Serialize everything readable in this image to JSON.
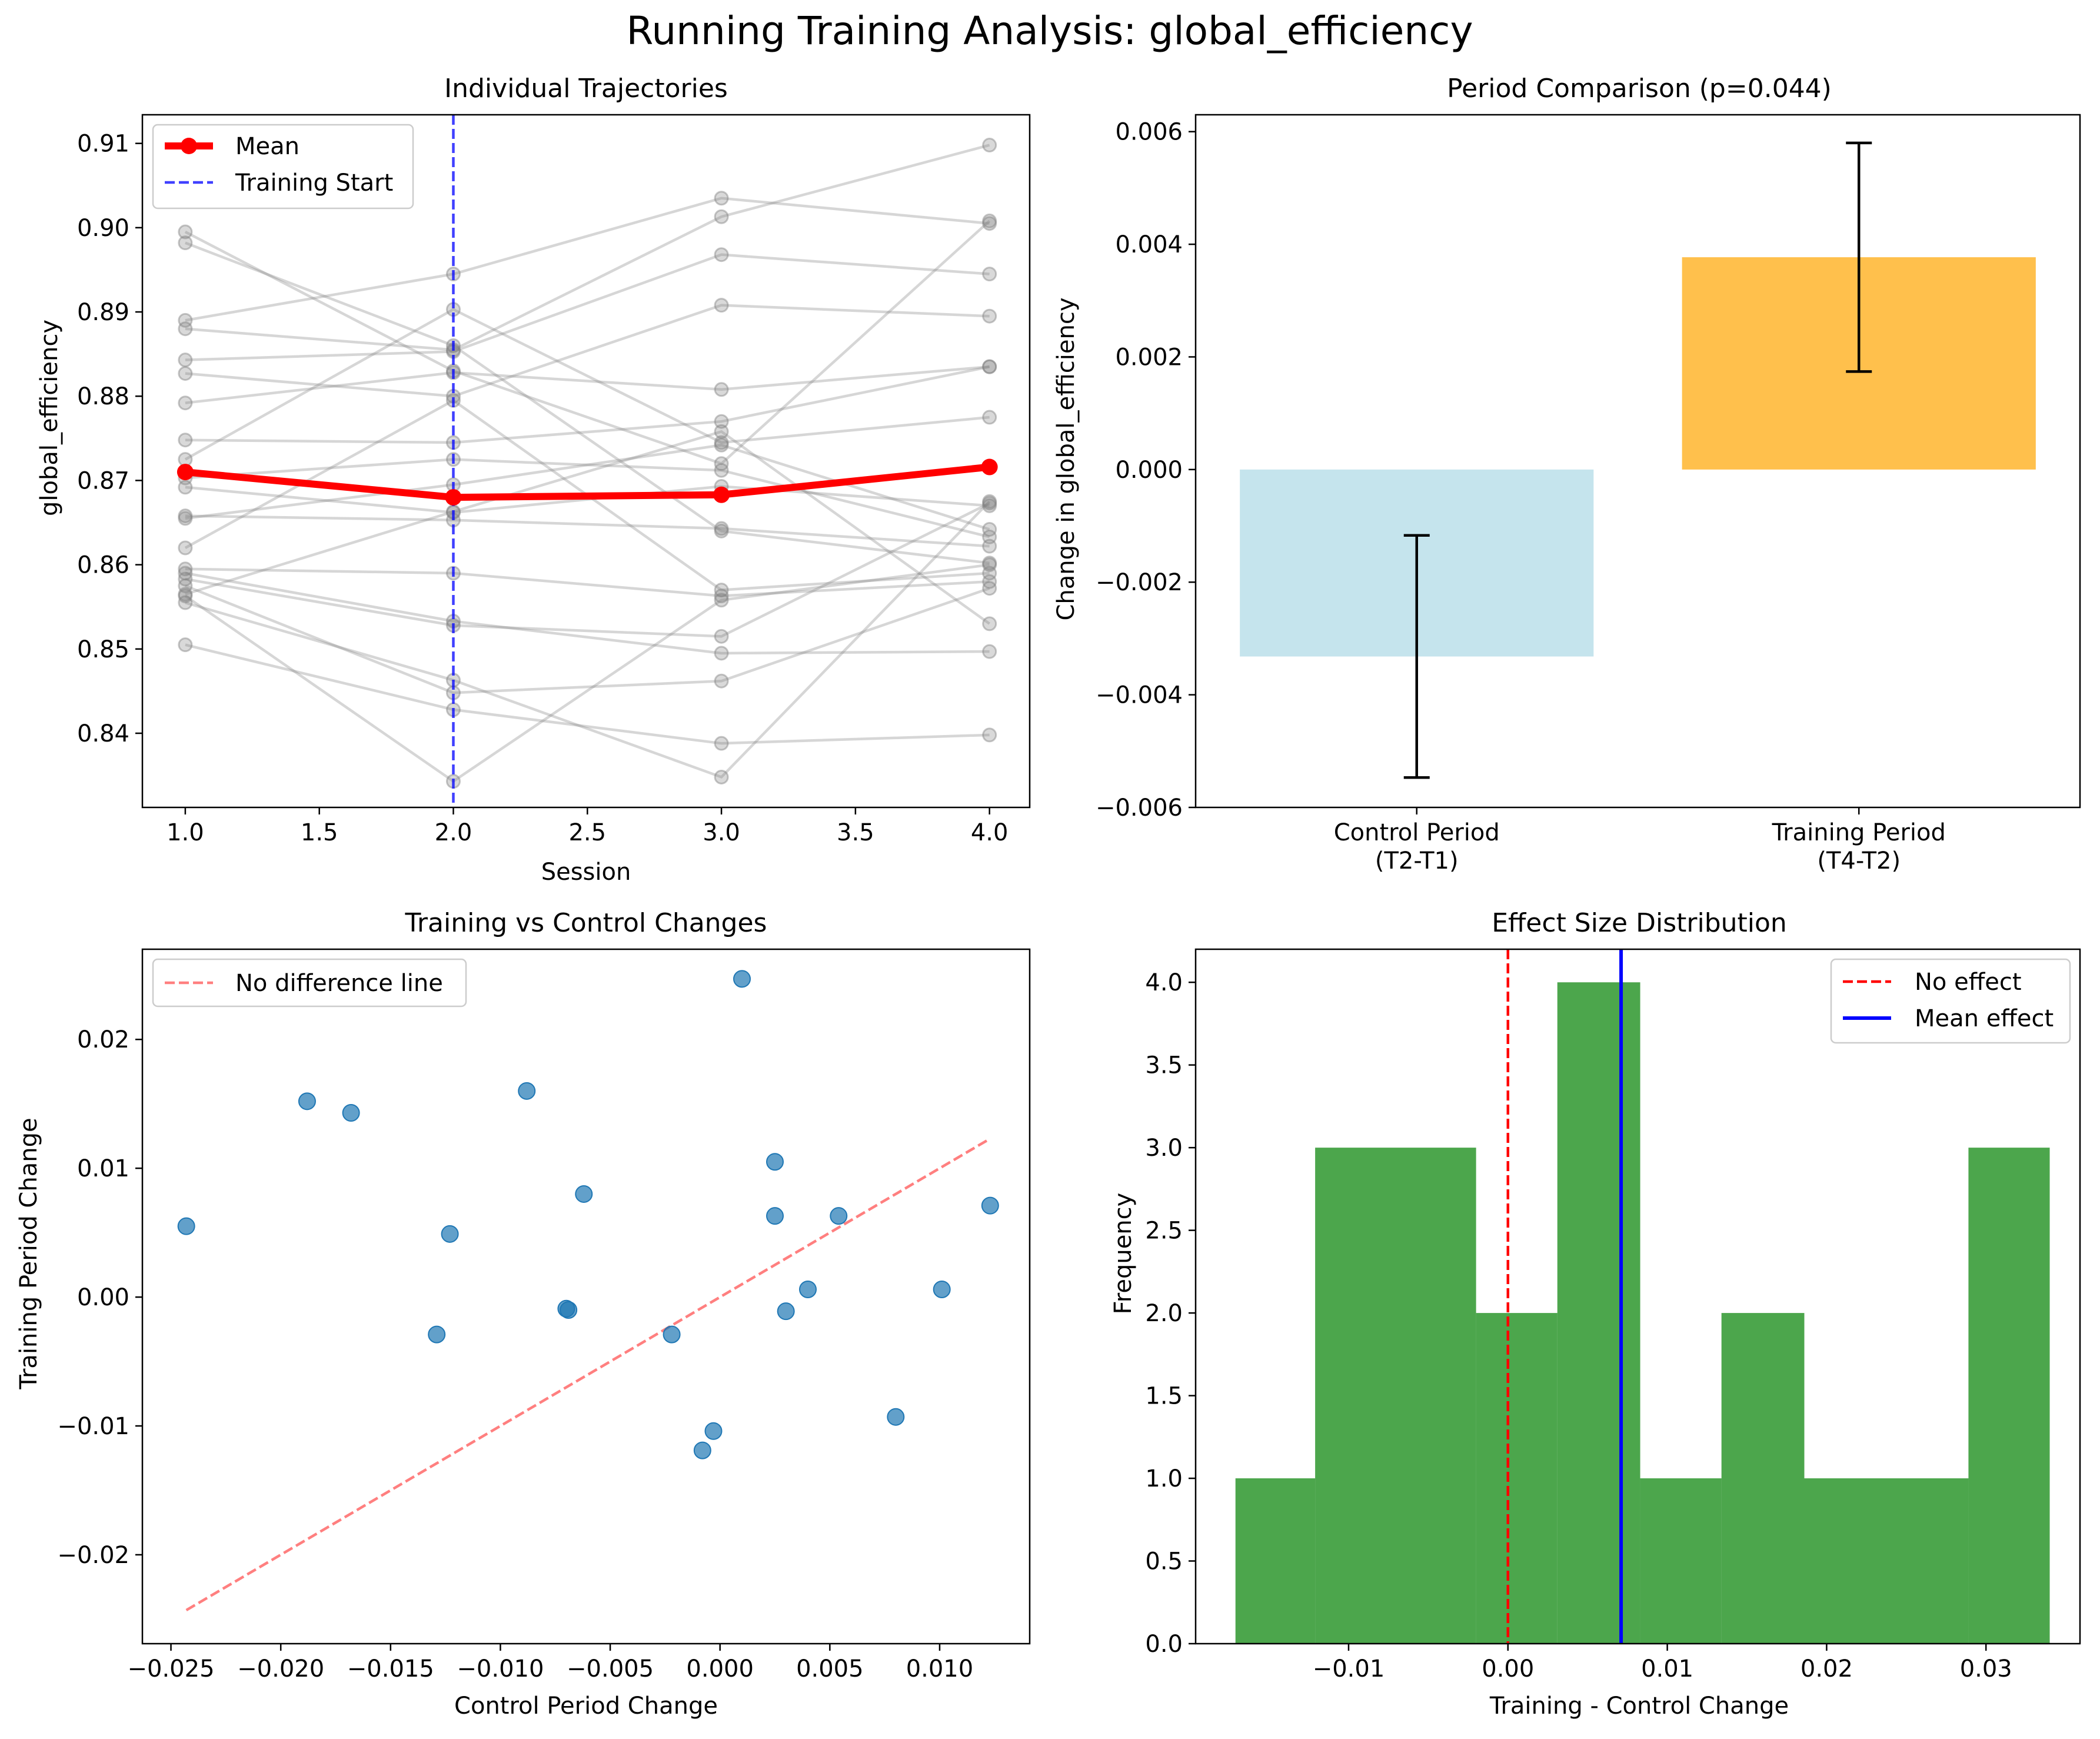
{
  "figure": {
    "suptitle": "Running Training Analysis: global_efficiency"
  },
  "chart_data": [
    {
      "type": "line",
      "title": "Individual Trajectories",
      "xlabel": "Session",
      "ylabel": "global_efficiency",
      "xlim": [
        0.84,
        4.15
      ],
      "ylim": [
        0.8312,
        0.9134
      ],
      "xticks": [
        1.0,
        1.5,
        2.0,
        2.5,
        3.0,
        3.5,
        4.0
      ],
      "xtick_labels": [
        "1.0",
        "1.5",
        "2.0",
        "2.5",
        "3.0",
        "3.5",
        "4.0"
      ],
      "yticks": [
        0.84,
        0.85,
        0.86,
        0.87,
        0.88,
        0.89,
        0.9,
        0.91
      ],
      "ytick_labels": [
        "0.84",
        "0.85",
        "0.86",
        "0.87",
        "0.88",
        "0.89",
        "0.90",
        "0.91"
      ],
      "legend": {
        "position": "upper-left",
        "entries": [
          "Mean",
          "Training Start"
        ]
      },
      "x": [
        1,
        2,
        3,
        4
      ],
      "mean": [
        0.871,
        0.868,
        0.8683,
        0.8716
      ],
      "training_start": 2.0,
      "subjects": [
        [
          0.8995,
          0.883,
          0.872,
          0.9008
        ],
        [
          0.8982,
          0.886,
          0.864,
          0.8602
        ],
        [
          0.889,
          0.8945,
          0.9035,
          0.9005
        ],
        [
          0.888,
          0.8855,
          0.9013,
          0.9098
        ],
        [
          0.8843,
          0.8853,
          0.8968,
          0.8945
        ],
        [
          0.8827,
          0.88,
          0.8908,
          0.8895
        ],
        [
          0.8792,
          0.8828,
          0.8808,
          0.8835
        ],
        [
          0.8748,
          0.8745,
          0.877,
          0.8835
        ],
        [
          0.8725,
          0.8903,
          0.8745,
          0.8775
        ],
        [
          0.8703,
          0.8725,
          0.8712,
          0.8633
        ],
        [
          0.8692,
          0.8662,
          0.8693,
          0.867
        ],
        [
          0.8658,
          0.8653,
          0.8643,
          0.8622
        ],
        [
          0.8655,
          0.8695,
          0.8742,
          0.8642
        ],
        [
          0.862,
          0.8795,
          0.857,
          0.859
        ],
        [
          0.8595,
          0.859,
          0.8563,
          0.858
        ],
        [
          0.859,
          0.8533,
          0.8495,
          0.8497
        ],
        [
          0.8583,
          0.8528,
          0.8515,
          0.8673
        ],
        [
          0.8575,
          0.8448,
          0.8462,
          0.8572
        ],
        [
          0.8565,
          0.8663,
          0.8758,
          0.853
        ],
        [
          0.8555,
          0.8463,
          0.8348,
          0.8675
        ],
        [
          0.8505,
          0.8428,
          0.8388,
          0.8398
        ],
        [
          0.8563,
          0.8343,
          0.8558,
          0.86
        ]
      ]
    },
    {
      "type": "bar",
      "title": "Period Comparison (p=0.044)",
      "xlabel": "",
      "ylabel": "Change in global_efficiency",
      "ylim": [
        -0.006,
        0.0063
      ],
      "yticks": [
        -0.006,
        -0.004,
        -0.002,
        0.0,
        0.002,
        0.004,
        0.006
      ],
      "ytick_labels": [
        "−0.006",
        "−0.004",
        "−0.002",
        "0.000",
        "0.002",
        "0.004",
        "0.006"
      ],
      "categories": [
        "Control Period\n(T2-T1)",
        "Training Period\n(T4-T2)"
      ],
      "category_lines": [
        [
          "Control Period",
          "(T2-T1)"
        ],
        [
          "Training Period",
          "(T4-T2)"
        ]
      ],
      "values": [
        -0.00332,
        0.00377
      ],
      "errors": [
        0.00215,
        0.00203
      ],
      "colors": [
        "#add8e6",
        "#ffa500"
      ]
    },
    {
      "type": "scatter",
      "title": "Training vs Control Changes",
      "xlabel": "Control Period Change",
      "ylabel": "Training Period Change",
      "xlim": [
        -0.0263,
        0.0141
      ],
      "ylim": [
        -0.0269,
        0.027
      ],
      "xticks": [
        -0.025,
        -0.02,
        -0.015,
        -0.01,
        -0.005,
        0.0,
        0.005,
        0.01
      ],
      "xtick_labels": [
        "−0.025",
        "−0.020",
        "−0.015",
        "−0.010",
        "−0.005",
        "0.000",
        "0.005",
        "0.010"
      ],
      "yticks": [
        -0.02,
        -0.01,
        0.0,
        0.01,
        0.02
      ],
      "ytick_labels": [
        "−0.02",
        "−0.01",
        "0.00",
        "0.01",
        "0.02"
      ],
      "legend": {
        "position": "upper-left",
        "entries": [
          "No difference line"
        ]
      },
      "identity_line": [
        [
          -0.0243,
          -0.0243
        ],
        [
          0.0122,
          0.0122
        ]
      ],
      "points": [
        [
          -0.0243,
          0.0055
        ],
        [
          -0.0188,
          0.0152
        ],
        [
          -0.0168,
          0.0143
        ],
        [
          -0.0123,
          0.0049
        ],
        [
          -0.0129,
          -0.0029
        ],
        [
          -0.0088,
          0.016
        ],
        [
          -0.007,
          -0.0009
        ],
        [
          -0.0069,
          -0.001
        ],
        [
          -0.0062,
          0.008
        ],
        [
          -0.0022,
          -0.0029
        ],
        [
          -0.0008,
          -0.0119
        ],
        [
          -0.0003,
          -0.0104
        ],
        [
          0.001,
          0.0247
        ],
        [
          0.0025,
          0.0105
        ],
        [
          0.0025,
          0.0063
        ],
        [
          0.003,
          -0.0011
        ],
        [
          0.004,
          0.0006
        ],
        [
          0.0054,
          0.0063
        ],
        [
          0.008,
          -0.0093
        ],
        [
          0.0101,
          0.0006
        ],
        [
          0.0123,
          0.0071
        ]
      ]
    },
    {
      "type": "bar",
      "title": "Effect Size Distribution",
      "xlabel": "Training - Control Change",
      "ylabel": "Frequency",
      "xlim": [
        -0.0196,
        0.0359
      ],
      "ylim": [
        0,
        4.2
      ],
      "xticks": [
        -0.01,
        0.0,
        0.01,
        0.02,
        0.03
      ],
      "xtick_labels": [
        "−0.01",
        "0.00",
        "0.01",
        "0.02",
        "0.03"
      ],
      "yticks": [
        0.0,
        0.5,
        1.0,
        1.5,
        2.0,
        2.5,
        3.0,
        3.5,
        4.0
      ],
      "ytick_labels": [
        "0.0",
        "0.5",
        "1.0",
        "1.5",
        "2.0",
        "2.5",
        "3.0",
        "3.5",
        "4.0"
      ],
      "legend": {
        "position": "upper-right",
        "entries": [
          "No effect",
          "Mean effect"
        ]
      },
      "bin_edges": [
        -0.0171,
        -0.0121,
        -0.002,
        0.0031,
        0.0083,
        0.0134,
        0.0186,
        0.0289,
        0.034
      ],
      "counts": [
        1,
        3,
        2,
        4,
        1,
        2,
        1,
        3
      ],
      "no_effect": 0.0,
      "mean_effect": 0.0071,
      "color": "#008000"
    }
  ],
  "colors": {
    "subject_line": "#808080",
    "mean_line": "#ff0000",
    "training_start": "#0000ff",
    "scatter_point": "#1f77b4",
    "identity_line": "#ff0000",
    "no_effect": "#ff0000",
    "mean_effect": "#0000ff"
  }
}
